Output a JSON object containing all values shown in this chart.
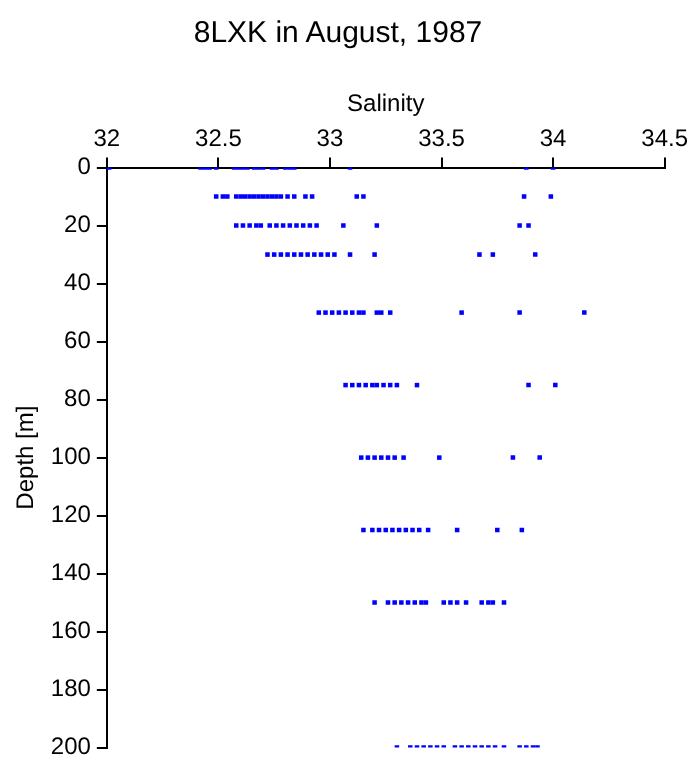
{
  "chart_data": {
    "type": "scatter",
    "title": "8LXK in August, 1987",
    "xlabel": "Salinity",
    "ylabel": "Depth [m]",
    "xlim": [
      32,
      34.5
    ],
    "xticks": [
      32,
      32.5,
      33,
      33.5,
      34,
      34.5
    ],
    "ylim": [
      200,
      0
    ],
    "yticks": [
      0,
      20,
      40,
      60,
      80,
      100,
      120,
      140,
      160,
      180,
      200
    ],
    "grid": false,
    "legend": false,
    "marker": "square",
    "series": [
      {
        "color": "#0000ff",
        "x": [
          32.01,
          32.42,
          32.44,
          32.46,
          32.49,
          32.57,
          32.59,
          32.61,
          32.63,
          32.66,
          32.68,
          32.7,
          32.74,
          32.76,
          32.8,
          32.82,
          32.84,
          33.09,
          33.88,
          34.0
        ],
        "values": [
          0,
          0,
          0,
          0,
          0,
          0,
          0,
          0,
          0,
          0,
          0,
          0,
          0,
          0,
          0,
          0,
          0,
          0,
          0,
          0
        ]
      },
      {
        "color": "#0000ff",
        "x": [
          32.49,
          32.52,
          32.54,
          32.58,
          32.6,
          32.62,
          32.64,
          32.66,
          32.68,
          32.7,
          32.72,
          32.74,
          32.76,
          32.78,
          32.81,
          32.84,
          32.89,
          32.92,
          33.12,
          33.15,
          33.87,
          33.99
        ],
        "values": [
          10,
          10,
          10,
          10,
          10,
          10,
          10,
          10,
          10,
          10,
          10,
          10,
          10,
          10,
          10,
          10,
          10,
          10,
          10,
          10,
          10,
          10
        ]
      },
      {
        "color": "#0000ff",
        "x": [
          32.58,
          32.61,
          32.64,
          32.67,
          32.69,
          32.73,
          32.76,
          32.79,
          32.82,
          32.85,
          32.88,
          32.91,
          32.94,
          33.06,
          33.21,
          33.85,
          33.89
        ],
        "values": [
          20,
          20,
          20,
          20,
          20,
          20,
          20,
          20,
          20,
          20,
          20,
          20,
          20,
          20,
          20,
          20,
          20
        ]
      },
      {
        "color": "#0000ff",
        "x": [
          32.72,
          32.75,
          32.78,
          32.81,
          32.84,
          32.87,
          32.9,
          32.93,
          32.96,
          32.99,
          33.02,
          33.09,
          33.2,
          33.67,
          33.73,
          33.92
        ],
        "values": [
          30,
          30,
          30,
          30,
          30,
          30,
          30,
          30,
          30,
          30,
          30,
          30,
          30,
          30,
          30,
          30
        ]
      },
      {
        "color": "#0000ff",
        "x": [
          32.95,
          32.98,
          33.01,
          33.04,
          33.07,
          33.1,
          33.13,
          33.15,
          33.21,
          33.23,
          33.27,
          33.59,
          33.85,
          34.14
        ],
        "values": [
          50,
          50,
          50,
          50,
          50,
          50,
          50,
          50,
          50,
          50,
          50,
          50,
          50,
          50
        ]
      },
      {
        "color": "#0000ff",
        "x": [
          33.07,
          33.1,
          33.13,
          33.16,
          33.19,
          33.21,
          33.24,
          33.27,
          33.3,
          33.39,
          33.89,
          34.01
        ],
        "values": [
          75,
          75,
          75,
          75,
          75,
          75,
          75,
          75,
          75,
          75,
          75,
          75
        ]
      },
      {
        "color": "#0000ff",
        "x": [
          33.14,
          33.17,
          33.2,
          33.23,
          33.26,
          33.29,
          33.33,
          33.49,
          33.82,
          33.94
        ],
        "values": [
          100,
          100,
          100,
          100,
          100,
          100,
          100,
          100,
          100,
          100
        ]
      },
      {
        "color": "#0000ff",
        "x": [
          33.15,
          33.19,
          33.22,
          33.25,
          33.28,
          33.31,
          33.34,
          33.37,
          33.4,
          33.44,
          33.57,
          33.75,
          33.86
        ],
        "values": [
          125,
          125,
          125,
          125,
          125,
          125,
          125,
          125,
          125,
          125,
          125,
          125,
          125
        ]
      },
      {
        "color": "#0000ff",
        "x": [
          33.2,
          33.26,
          33.29,
          33.32,
          33.35,
          33.38,
          33.41,
          33.43,
          33.51,
          33.54,
          33.57,
          33.61,
          33.68,
          33.71,
          33.73,
          33.78
        ],
        "values": [
          150,
          150,
          150,
          150,
          150,
          150,
          150,
          150,
          150,
          150,
          150,
          150,
          150,
          150,
          150,
          150
        ]
      },
      {
        "color": "#0000ff",
        "x": [
          33.3,
          33.36,
          33.39,
          33.42,
          33.45,
          33.48,
          33.51,
          33.56,
          33.59,
          33.62,
          33.65,
          33.68,
          33.71,
          33.74,
          33.78,
          33.85,
          33.88,
          33.91,
          33.93
        ],
        "values": [
          200,
          200,
          200,
          200,
          200,
          200,
          200,
          200,
          200,
          200,
          200,
          200,
          200,
          200,
          200,
          200,
          200,
          200,
          200
        ]
      }
    ]
  }
}
